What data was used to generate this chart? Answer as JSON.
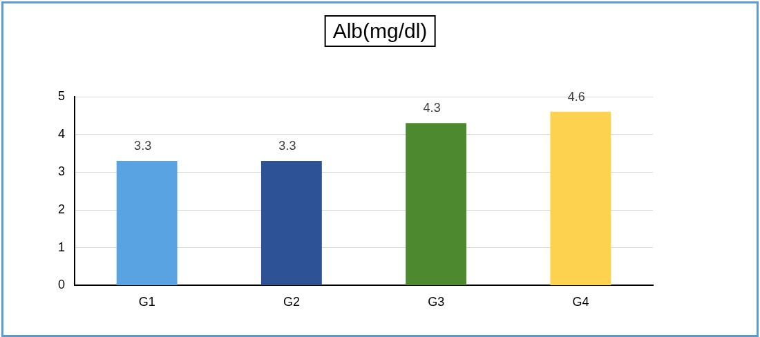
{
  "chart_data": {
    "type": "bar",
    "title": "Alb(mg/dl)",
    "categories": [
      "G1",
      "G2",
      "G3",
      "G4"
    ],
    "values": [
      3.3,
      3.3,
      4.3,
      4.6
    ],
    "colors": [
      "#5aa3e3",
      "#2d5296",
      "#4d8a2f",
      "#fdd24f"
    ],
    "ylim": [
      0,
      5
    ],
    "yticks": [
      0,
      1,
      2,
      3,
      4,
      5
    ],
    "grid": "y",
    "data_labels": true
  }
}
